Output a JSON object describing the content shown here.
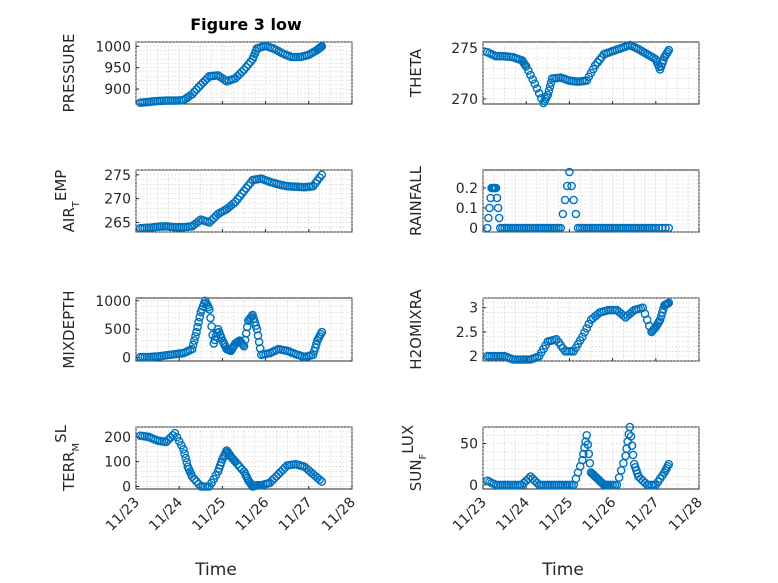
{
  "figure_title": "Figure 3 low",
  "x_axis": {
    "label": "Time",
    "ticks": [
      "11/23",
      "11/24",
      "11/25",
      "11/26",
      "11/27",
      "11/28"
    ]
  },
  "marker_color": "#0072BD",
  "chart_data": [
    {
      "id": "pressure",
      "type": "scatter",
      "ylabel": "PRESSURE",
      "ylim": [
        865,
        1010
      ],
      "yticks": [
        900,
        950,
        1000
      ],
      "x": [
        23.1,
        23.3,
        23.5,
        23.7,
        23.9,
        24.1,
        24.3,
        24.5,
        24.7,
        24.9,
        25.1,
        25.3,
        25.5,
        25.7,
        25.8,
        26.0,
        26.2,
        26.4,
        26.6,
        26.8,
        27.0,
        27.2,
        27.3
      ],
      "y": [
        868,
        870,
        872,
        873,
        873,
        874,
        888,
        910,
        930,
        932,
        918,
        925,
        945,
        970,
        995,
        1001,
        994,
        983,
        975,
        975,
        980,
        992,
        1000
      ]
    },
    {
      "id": "theta",
      "type": "scatter",
      "ylabel": "THETA",
      "ylim": [
        269.5,
        275.6
      ],
      "yticks": [
        270,
        275
      ],
      "x": [
        23.1,
        23.3,
        23.5,
        23.7,
        23.9,
        24.0,
        24.2,
        24.4,
        24.5,
        24.6,
        24.8,
        25.0,
        25.2,
        25.4,
        25.6,
        25.8,
        26.0,
        26.2,
        26.4,
        26.6,
        26.8,
        27.0,
        27.1,
        27.2,
        27.3
      ],
      "y": [
        274.6,
        274.2,
        274.2,
        274.1,
        273.8,
        273.2,
        271.5,
        269.6,
        270.4,
        272.0,
        272.1,
        271.8,
        271.7,
        271.8,
        273.3,
        274.4,
        274.7,
        275.0,
        275.3,
        274.9,
        274.4,
        273.9,
        272.9,
        274.1,
        274.8
      ]
    },
    {
      "id": "air_temp",
      "type": "scatter",
      "ylabel": "AIR",
      "ylabel_sub": "T",
      "ylabel_tail": "EMP",
      "ylim": [
        263,
        276
      ],
      "yticks": [
        265,
        270,
        275
      ],
      "x": [
        23.1,
        23.3,
        23.5,
        23.7,
        23.9,
        24.1,
        24.3,
        24.5,
        24.7,
        24.9,
        25.1,
        25.3,
        25.5,
        25.7,
        25.9,
        26.1,
        26.3,
        26.5,
        26.7,
        26.9,
        27.1,
        27.3
      ],
      "y": [
        263.8,
        263.9,
        264.1,
        264.2,
        264.0,
        264.0,
        264.2,
        265.6,
        265.0,
        266.8,
        267.8,
        269.3,
        271.6,
        273.9,
        274.2,
        273.5,
        273.0,
        272.6,
        272.5,
        272.4,
        272.6,
        275.0
      ]
    },
    {
      "id": "rainfall",
      "type": "scatter",
      "ylabel": "RAINFALL",
      "ylim": [
        -0.02,
        0.29
      ],
      "yticks": [
        0,
        0.1,
        0.2
      ],
      "x": [
        23.1,
        23.2,
        23.3,
        23.4,
        23.6,
        23.8,
        24.0,
        24.2,
        24.4,
        24.6,
        24.8,
        25.0,
        25.2,
        25.4,
        25.6,
        25.8,
        26.0,
        26.2,
        26.4,
        26.6,
        26.8,
        27.0,
        27.3
      ],
      "y": [
        0,
        0.2,
        0.2,
        0,
        0,
        0,
        0,
        0,
        0,
        0,
        0,
        0.28,
        0,
        0,
        0,
        0,
        0,
        0,
        0,
        0,
        0,
        0,
        0
      ]
    },
    {
      "id": "mixdepth",
      "type": "scatter",
      "ylabel": "MIXDEPTH",
      "ylim": [
        -60,
        1050
      ],
      "yticks": [
        0,
        500,
        1000
      ],
      "x": [
        23.1,
        23.3,
        23.5,
        23.7,
        23.9,
        24.1,
        24.3,
        24.4,
        24.5,
        24.6,
        24.7,
        24.8,
        24.9,
        25.0,
        25.1,
        25.2,
        25.3,
        25.4,
        25.5,
        25.6,
        25.7,
        25.8,
        25.9,
        26.1,
        26.3,
        26.5,
        26.7,
        26.9,
        27.1,
        27.2,
        27.3
      ],
      "y": [
        10,
        10,
        20,
        40,
        60,
        80,
        150,
        450,
        800,
        1000,
        850,
        250,
        500,
        300,
        150,
        120,
        250,
        300,
        200,
        650,
        750,
        500,
        50,
        80,
        150,
        120,
        60,
        10,
        50,
        300,
        450
      ]
    },
    {
      "id": "h2omixra",
      "type": "scatter",
      "ylabel": "H2OMIXRA",
      "ylim": [
        1.9,
        3.2
      ],
      "yticks": [
        2,
        2.5,
        3
      ],
      "x": [
        23.1,
        23.3,
        23.5,
        23.7,
        23.9,
        24.1,
        24.3,
        24.5,
        24.7,
        24.9,
        25.1,
        25.3,
        25.5,
        25.7,
        25.9,
        26.1,
        26.3,
        26.5,
        26.7,
        26.9,
        27.0,
        27.1,
        27.2,
        27.3
      ],
      "y": [
        2.0,
        2.0,
        2.0,
        1.93,
        1.93,
        1.93,
        2.0,
        2.3,
        2.35,
        2.1,
        2.1,
        2.4,
        2.75,
        2.9,
        2.95,
        2.95,
        2.8,
        2.95,
        3.0,
        2.5,
        2.6,
        2.75,
        3.05,
        3.1
      ]
    },
    {
      "id": "terr_msl",
      "type": "scatter",
      "ylabel": "TERR",
      "ylabel_sub": "M",
      "ylabel_tail": "SL",
      "ylim": [
        -10,
        240
      ],
      "yticks": [
        0,
        100,
        200
      ],
      "x": [
        23.1,
        23.3,
        23.5,
        23.7,
        23.9,
        24.1,
        24.2,
        24.3,
        24.5,
        24.7,
        24.9,
        25.0,
        25.1,
        25.2,
        25.3,
        25.5,
        25.6,
        25.7,
        25.8,
        25.9,
        26.1,
        26.3,
        26.5,
        26.7,
        26.9,
        27.1,
        27.3
      ],
      "y": [
        205,
        200,
        185,
        180,
        215,
        150,
        80,
        40,
        0,
        0,
        60,
        110,
        145,
        120,
        100,
        60,
        25,
        0,
        5,
        5,
        15,
        50,
        85,
        90,
        80,
        50,
        20
      ]
    },
    {
      "id": "sun_flux",
      "type": "scatter",
      "ylabel": "SUN",
      "ylabel_sub": "F",
      "ylabel_tail": "LUX",
      "ylim": [
        -5,
        70
      ],
      "yticks": [
        0,
        50
      ],
      "x": [
        23.1,
        23.3,
        23.5,
        23.7,
        23.9,
        24.1,
        24.3,
        24.5,
        24.7,
        24.9,
        25.1,
        25.3,
        25.4,
        25.5,
        25.6,
        25.7,
        25.8,
        25.9,
        26.1,
        26.3,
        26.4,
        26.5,
        26.6,
        26.8,
        27.0,
        27.2,
        27.3
      ],
      "y": [
        5,
        0,
        0,
        0,
        0,
        10,
        0,
        0,
        0,
        0,
        0,
        30,
        60,
        15,
        10,
        5,
        0,
        0,
        0,
        35,
        70,
        25,
        10,
        0,
        0,
        15,
        25
      ]
    }
  ]
}
